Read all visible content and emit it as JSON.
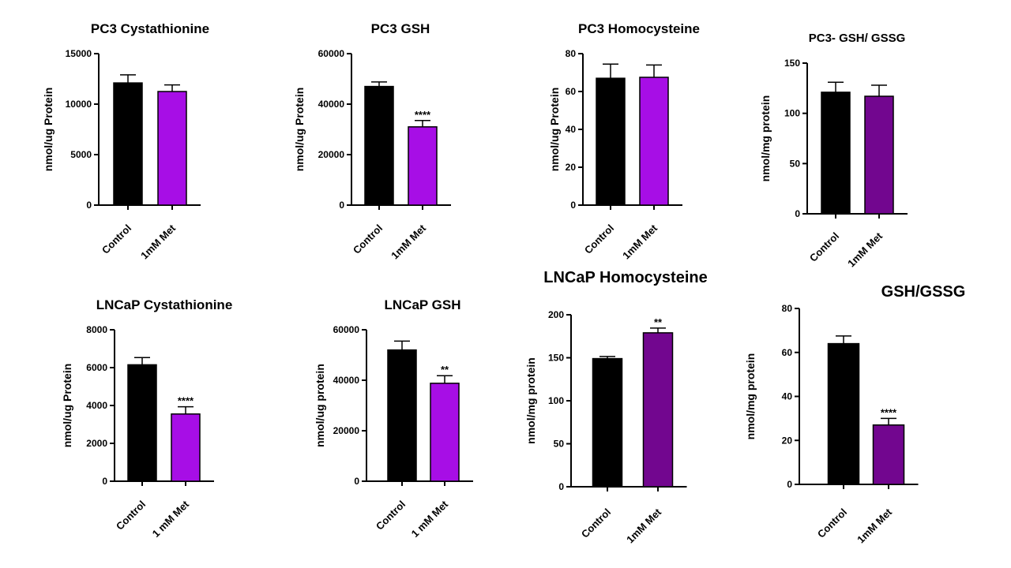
{
  "colors": {
    "control": "#000000",
    "met_bright": "#A70EE6",
    "met_dark": "#72068F",
    "axis": "#000000"
  },
  "chart_data": [
    {
      "type": "bar",
      "title": "PC3 Cystathionine",
      "ylabel": "nmol/ug Protein",
      "categories": [
        "Control",
        "1mM Met"
      ],
      "values": [
        12100,
        11250
      ],
      "errors": [
        800,
        650
      ],
      "significance": [
        "",
        ""
      ],
      "ylim": [
        0,
        15000
      ],
      "yticks": [
        0,
        5000,
        10000,
        15000
      ],
      "ytick_labels": [
        "0",
        "5000",
        "10000",
        "15000"
      ],
      "colors": [
        "#000000",
        "#A70EE6"
      ]
    },
    {
      "type": "bar",
      "title": "PC3 GSH",
      "ylabel": "nmol/ug Protein",
      "categories": [
        "Control",
        "1mM Met"
      ],
      "values": [
        47000,
        31000
      ],
      "errors": [
        1800,
        2500
      ],
      "significance": [
        "",
        "****"
      ],
      "ylim": [
        0,
        60000
      ],
      "yticks": [
        0,
        20000,
        40000,
        60000
      ],
      "ytick_labels": [
        "0",
        "20000",
        "40000",
        "60000"
      ],
      "colors": [
        "#000000",
        "#A70EE6"
      ]
    },
    {
      "type": "bar",
      "title": "PC3 Homocysteine",
      "ylabel": "nmol/ug Protein",
      "categories": [
        "Control",
        "1mM Met"
      ],
      "values": [
        67,
        67.5
      ],
      "errors": [
        7.5,
        6.5
      ],
      "significance": [
        "",
        ""
      ],
      "ylim": [
        0,
        80
      ],
      "yticks": [
        0,
        20,
        40,
        60,
        80
      ],
      "ytick_labels": [
        "0",
        "20",
        "40",
        "60",
        "80"
      ],
      "colors": [
        "#000000",
        "#A70EE6"
      ]
    },
    {
      "type": "bar",
      "title": "PC3- GSH/ GSSG",
      "ylabel": "nmol/mg protein",
      "categories": [
        "Control",
        "1mM Met"
      ],
      "values": [
        121,
        117
      ],
      "errors": [
        10,
        11
      ],
      "significance": [
        "",
        ""
      ],
      "ylim": [
        0,
        150
      ],
      "yticks": [
        0,
        50,
        100,
        150
      ],
      "ytick_labels": [
        "0",
        "50",
        "100",
        "150"
      ],
      "colors": [
        "#000000",
        "#72068F"
      ]
    },
    {
      "type": "bar",
      "title": "LNCaP Cystathionine",
      "ylabel": "nmol/ug Protein",
      "categories": [
        "Control",
        "1 mM Met"
      ],
      "values": [
        6150,
        3550
      ],
      "errors": [
        380,
        380
      ],
      "significance": [
        "",
        "****"
      ],
      "ylim": [
        0,
        8000
      ],
      "yticks": [
        0,
        2000,
        4000,
        6000,
        8000
      ],
      "ytick_labels": [
        "0",
        "2000",
        "4000",
        "6000",
        "8000"
      ],
      "colors": [
        "#000000",
        "#A70EE6"
      ]
    },
    {
      "type": "bar",
      "title": "LNCaP GSH",
      "ylabel": "nmol/ug protein",
      "categories": [
        "Control",
        "1 mM Met"
      ],
      "values": [
        52000,
        38800
      ],
      "errors": [
        3500,
        3000
      ],
      "significance": [
        "",
        "**"
      ],
      "ylim": [
        0,
        60000
      ],
      "yticks": [
        0,
        20000,
        40000,
        60000
      ],
      "ytick_labels": [
        "0",
        "20000",
        "40000",
        "60000"
      ],
      "colors": [
        "#000000",
        "#A70EE6"
      ]
    },
    {
      "type": "bar",
      "title": "LNCaP Homocysteine",
      "ylabel": "nmol/mg protein",
      "categories": [
        "Control",
        "1mM Met"
      ],
      "values": [
        149,
        179
      ],
      "errors": [
        2.5,
        5.5
      ],
      "significance": [
        "",
        "**"
      ],
      "ylim": [
        0,
        200
      ],
      "yticks": [
        0,
        50,
        100,
        150,
        200
      ],
      "ytick_labels": [
        "0",
        "50",
        "100",
        "150",
        "200"
      ],
      "colors": [
        "#000000",
        "#72068F"
      ]
    },
    {
      "type": "bar",
      "title": "GSH/GSSG",
      "ylabel": "nmol/mg protein",
      "categories": [
        "Control",
        "1mM Met"
      ],
      "values": [
        64,
        27
      ],
      "errors": [
        3.5,
        3
      ],
      "significance": [
        "",
        "****"
      ],
      "ylim": [
        0,
        80
      ],
      "yticks": [
        0,
        20,
        40,
        60,
        80
      ],
      "ytick_labels": [
        "0",
        "20",
        "40",
        "60",
        "80"
      ],
      "colors": [
        "#000000",
        "#72068F"
      ]
    }
  ]
}
